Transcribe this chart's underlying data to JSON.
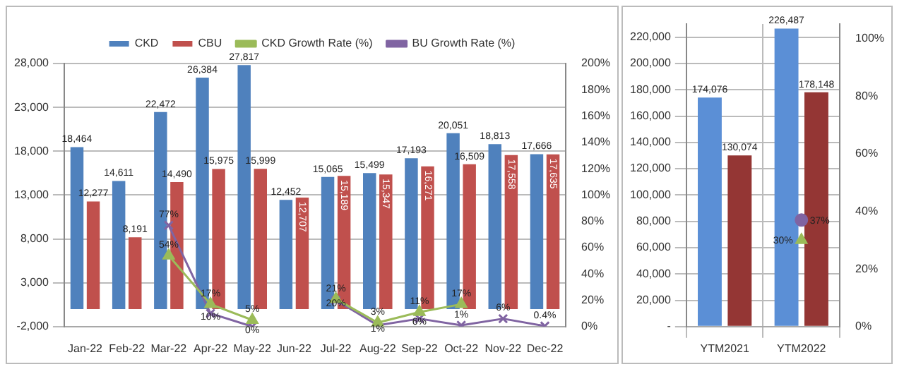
{
  "chart_data": [
    {
      "type": "bar",
      "categories": [
        "Jan-22",
        "Feb-22",
        "Mar-22",
        "Apr-22",
        "May-22",
        "Jun-22",
        "Jul-22",
        "Aug-22",
        "Sep-22",
        "Oct-22",
        "Nov-22",
        "Dec-22"
      ],
      "series": [
        {
          "name": "CKD",
          "color": "#4f81bd",
          "values": [
            18464,
            14611,
            22472,
            26384,
            27817,
            12452,
            15065,
            15499,
            17193,
            20051,
            18813,
            17666
          ],
          "value_labels": [
            "18,464",
            "14,611",
            "22,472",
            "26,384",
            "27,817",
            "12,452",
            "15,065",
            "15,499",
            "17,193",
            "20,051",
            "18,813",
            "17,666"
          ]
        },
        {
          "name": "CBU",
          "color": "#c0504d",
          "values": [
            12277,
            8191,
            14490,
            15975,
            15999,
            12707,
            15189,
            15347,
            16271,
            16509,
            17558,
            17635
          ],
          "value_labels": [
            "12,277",
            "8,191",
            "14,490",
            "15,975",
            "15,999",
            "12,707",
            "15,189",
            "15,347",
            "16,271",
            "16,509",
            "17,558",
            "17,635"
          ]
        },
        {
          "name": "CKD Growth Rate (%)",
          "type": "line",
          "axis": "y2",
          "marker": "triangle",
          "color": "#9bbb59",
          "values": [
            null,
            null,
            54,
            17,
            5,
            null,
            21,
            3,
            11,
            17,
            null,
            null
          ],
          "value_labels": [
            null,
            null,
            "54%",
            "17%",
            "5%",
            null,
            "21%",
            "3%",
            "11%",
            "17%",
            null,
            null
          ]
        },
        {
          "name": "BU Growth Rate (%)",
          "type": "line",
          "axis": "y2",
          "marker": "cross",
          "color": "#8064a2",
          "values": [
            null,
            null,
            77,
            10,
            0,
            null,
            20,
            1,
            6,
            1,
            6,
            0.4
          ],
          "value_labels": [
            null,
            null,
            "77%",
            "10%",
            "0%",
            null,
            "20%",
            "1%",
            "6%",
            "1%",
            "6%",
            "0.4%"
          ]
        }
      ],
      "ylim": [
        -2000,
        28000
      ],
      "yticks": [
        {
          "value": -2000,
          "label": "-2,000"
        },
        {
          "value": 3000,
          "label": "3,000"
        },
        {
          "value": 8000,
          "label": "8,000"
        },
        {
          "value": 13000,
          "label": "13,000"
        },
        {
          "value": 18000,
          "label": "18,000"
        },
        {
          "value": 23000,
          "label": "23,000"
        },
        {
          "value": 28000,
          "label": "28,000"
        }
      ],
      "y2lim": [
        0,
        200
      ],
      "y2ticks": [
        {
          "value": 0,
          "label": "0%"
        },
        {
          "value": 20,
          "label": "20%"
        },
        {
          "value": 40,
          "label": "40%"
        },
        {
          "value": 60,
          "label": "60%"
        },
        {
          "value": 80,
          "label": "80%"
        },
        {
          "value": 100,
          "label": "100%"
        },
        {
          "value": 120,
          "label": "120%"
        },
        {
          "value": 140,
          "label": "140%"
        },
        {
          "value": 160,
          "label": "160%"
        },
        {
          "value": 180,
          "label": "180%"
        },
        {
          "value": 200,
          "label": "200%"
        }
      ],
      "grid": "y",
      "legend": "top"
    },
    {
      "type": "bar",
      "categories": [
        "YTM2021",
        "YTM2022"
      ],
      "series": [
        {
          "color": "#5b8fd6",
          "values": [
            174076,
            226487
          ],
          "value_labels": [
            "174,076",
            "226,487"
          ]
        },
        {
          "color": "#943634",
          "values": [
            130074,
            178148
          ],
          "value_labels": [
            "130,074",
            "178,148"
          ]
        },
        {
          "type": "scatter",
          "axis": "y2",
          "marker": "triangle",
          "color": "#9bbb59",
          "values": [
            null,
            30
          ],
          "value_labels": [
            null,
            "30%"
          ]
        },
        {
          "type": "scatter",
          "axis": "y2",
          "marker": "circle",
          "color": "#8064a2",
          "values": [
            null,
            37
          ],
          "value_labels": [
            null,
            "37%"
          ]
        }
      ],
      "ylim": [
        0,
        230000
      ],
      "yticks": [
        {
          "value": 0,
          "label": "-"
        },
        {
          "value": 20000,
          "label": "20,000"
        },
        {
          "value": 40000,
          "label": "40,000"
        },
        {
          "value": 60000,
          "label": "60,000"
        },
        {
          "value": 80000,
          "label": "80,000"
        },
        {
          "value": 100000,
          "label": "100,000"
        },
        {
          "value": 120000,
          "label": "120,000"
        },
        {
          "value": 140000,
          "label": "140,000"
        },
        {
          "value": 160000,
          "label": "160,000"
        },
        {
          "value": 180000,
          "label": "180,000"
        },
        {
          "value": 200000,
          "label": "200,000"
        },
        {
          "value": 220000,
          "label": "220,000"
        }
      ],
      "y2lim": [
        0,
        105
      ],
      "y2ticks": [
        {
          "value": 0,
          "label": "0%"
        },
        {
          "value": 20,
          "label": "20%"
        },
        {
          "value": 40,
          "label": "40%"
        },
        {
          "value": 60,
          "label": "60%"
        },
        {
          "value": 80,
          "label": "80%"
        },
        {
          "value": 100,
          "label": "100%"
        }
      ],
      "grid": true
    }
  ]
}
